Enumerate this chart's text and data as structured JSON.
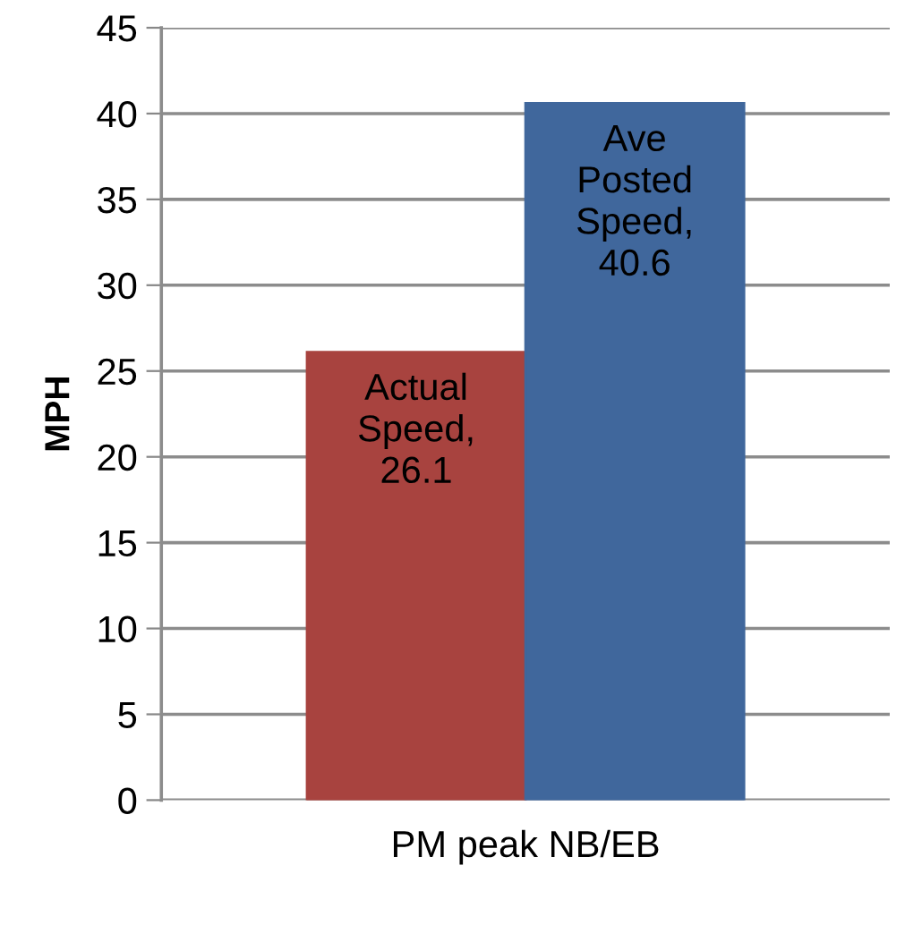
{
  "chart_data": {
    "type": "bar",
    "ylabel": "MPH",
    "categories": [
      "PM peak NB/EB"
    ],
    "series": [
      {
        "color": "#a8433f",
        "values": [
          26.1
        ],
        "value_labels": [
          "Actual Speed, 26.1"
        ]
      },
      {
        "color": "#40679c",
        "values": [
          40.6
        ],
        "value_labels": [
          "Ave Posted Speed, 40.6"
        ]
      }
    ],
    "ylim": [
      0,
      45
    ],
    "yticks": [
      0,
      5,
      10,
      15,
      20,
      25,
      30,
      35,
      40,
      45
    ],
    "grid": "y",
    "legend": false
  }
}
